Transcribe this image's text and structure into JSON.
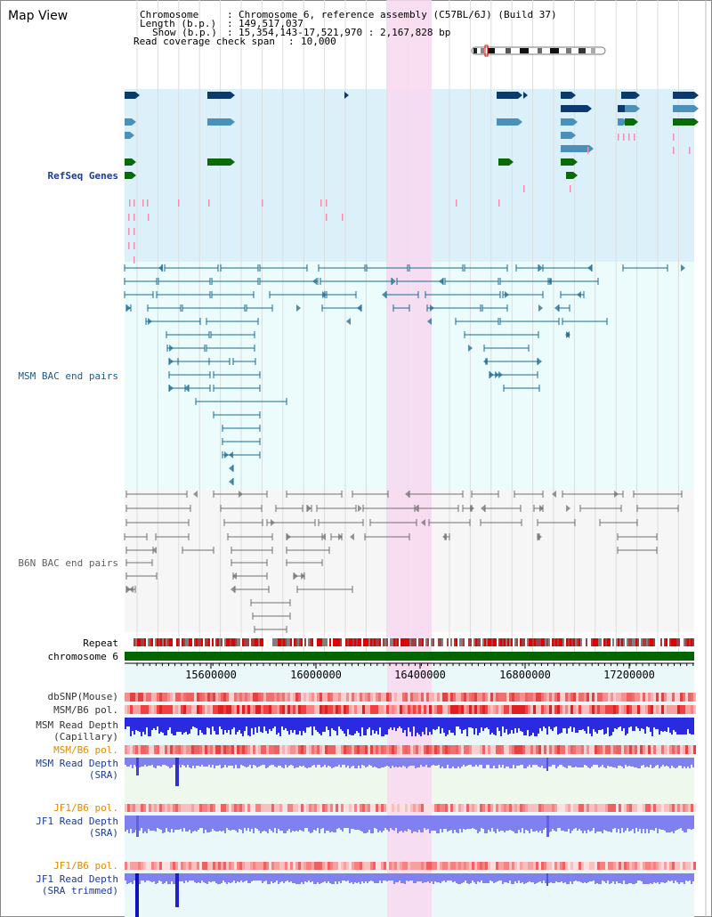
{
  "view_title": "Map View",
  "header": {
    "chromosome_label": "Chromosome",
    "chromosome_value": "Chromosome 6, reference assembly (C57BL/6J) (Build 37)",
    "length_label": "Length (b.p.)",
    "length_value": "149,517,037",
    "show_label": "Show (b.p.)",
    "show_value": "15,354,143-17,521,970 : 2,167,828 bp",
    "coverage_label": "Read coverage check span",
    "coverage_value": "10,000"
  },
  "tracks": {
    "refseq": "RefSeq Genes",
    "msm_bac": "MSM BAC end pairs",
    "b6n_bac": "B6N BAC end pairs",
    "repeat": "Repeat",
    "chromosome": "chromosome 6",
    "dbsnp": "dbSNP(Mouse)",
    "msm_b6_pol": "MSM/B6 pol.",
    "msm_depth_cap_1": "MSM Read Depth",
    "msm_depth_cap_2": "(Capillary)",
    "msm_b6_pol_2": "MSM/B6 pol.",
    "msm_depth_sra_1": "MSM Read Depth",
    "msm_depth_sra_2": "(SRA)",
    "jf1_b6_pol": "JF1/B6 pol.",
    "jf1_depth_sra_1": "JF1 Read Depth",
    "jf1_depth_sra_2": "(SRA)",
    "jf1_b6_pol_2": "JF1/B6 pol.",
    "jf1_depth_trim_1": "JF1 Read Depth",
    "jf1_depth_trim_2": "(SRA trimmed)"
  },
  "ruler_ticks": [
    "15600000",
    "16000000",
    "16400000",
    "16800000",
    "17200000"
  ],
  "colors": {
    "refseq_bg": "#dcf0fa",
    "msm_bg": "#ecfcfc",
    "b6n_bg": "#f6f6f6",
    "highlight": "#f8d8f0",
    "gene_dark": "#0a3a6e",
    "gene_mid": "#4a90b8",
    "gene_green": "#0a6a0a",
    "msm_line": "#1a6a90",
    "b6n_line": "#707070",
    "chromosome_bar": "#006600",
    "read_depth": "#2a2ae0",
    "read_depth_light": "#8080f0",
    "label_blue": "#1a3aa0",
    "label_orange": "#e08a00"
  }
}
